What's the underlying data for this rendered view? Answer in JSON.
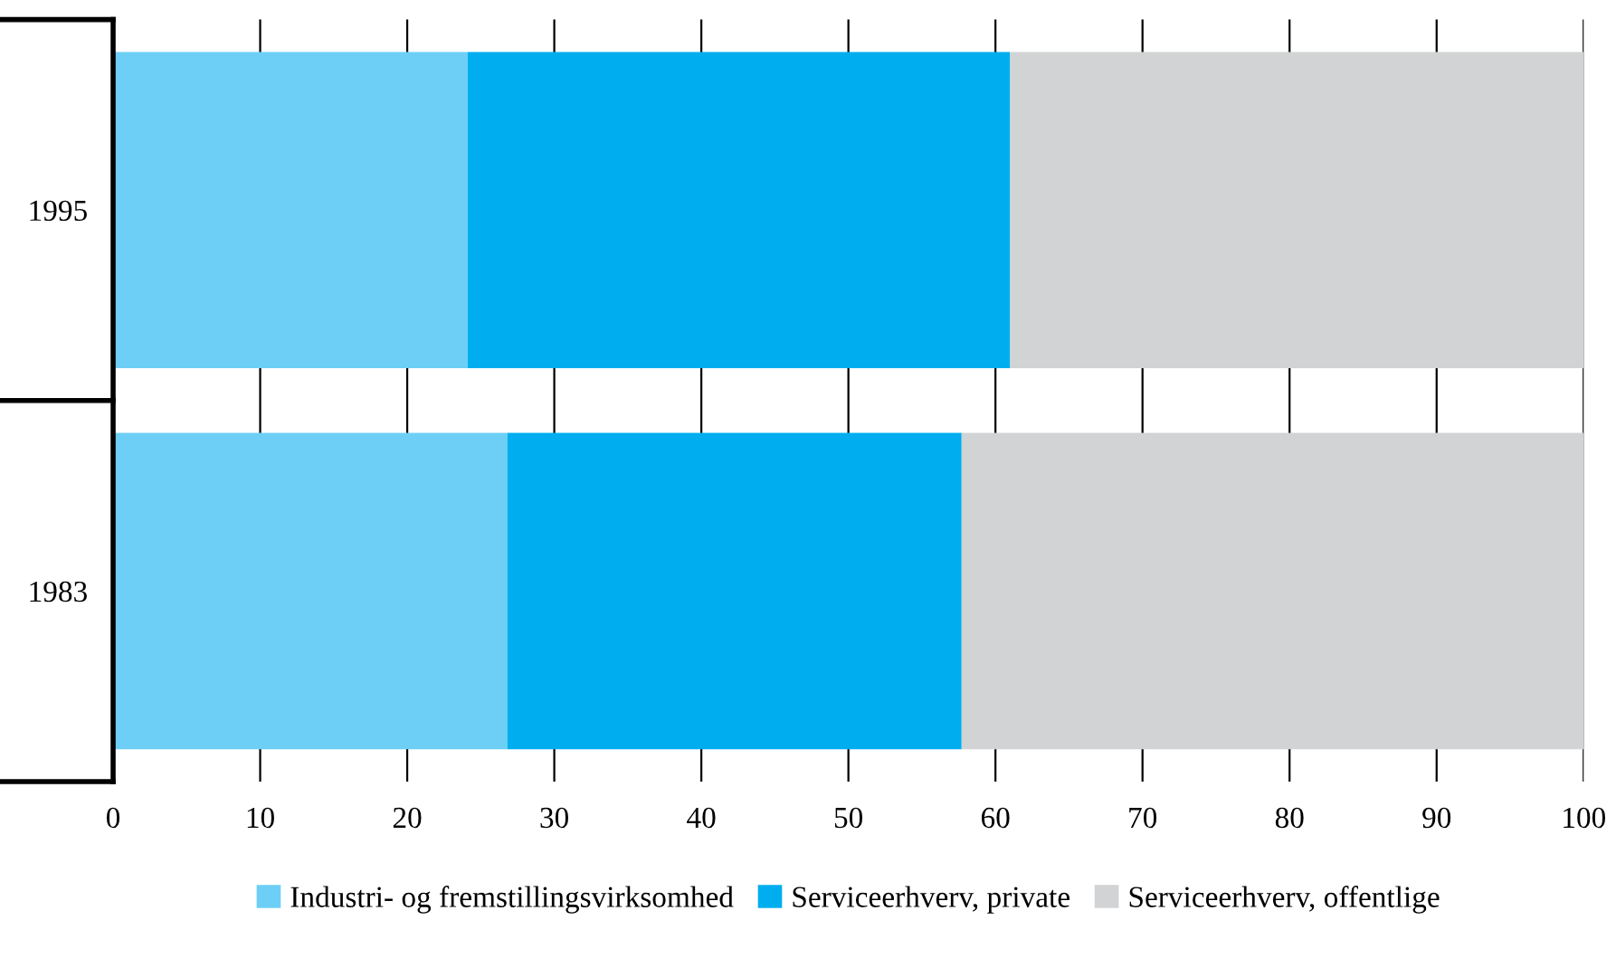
{
  "chart_data": {
    "type": "bar",
    "orientation": "horizontal",
    "stacked": true,
    "categories": [
      "1995",
      "1983"
    ],
    "series": [
      {
        "name": "Industri- og fremstillingsvirksomhed",
        "color": "#6dcff6",
        "values": [
          24.1,
          26.8
        ]
      },
      {
        "name": "Serviceerhverv, private",
        "color": "#00aeef",
        "values": [
          36.9,
          30.9
        ]
      },
      {
        "name": "Serviceerhverv, offentlige",
        "color": "#d1d3d4",
        "values": [
          39.0,
          42.3
        ]
      }
    ],
    "xlim": [
      0,
      100
    ],
    "xticks": [
      0,
      10,
      20,
      30,
      40,
      50,
      60,
      70,
      80,
      90,
      100
    ],
    "grid": "x",
    "legend": "bottom"
  }
}
